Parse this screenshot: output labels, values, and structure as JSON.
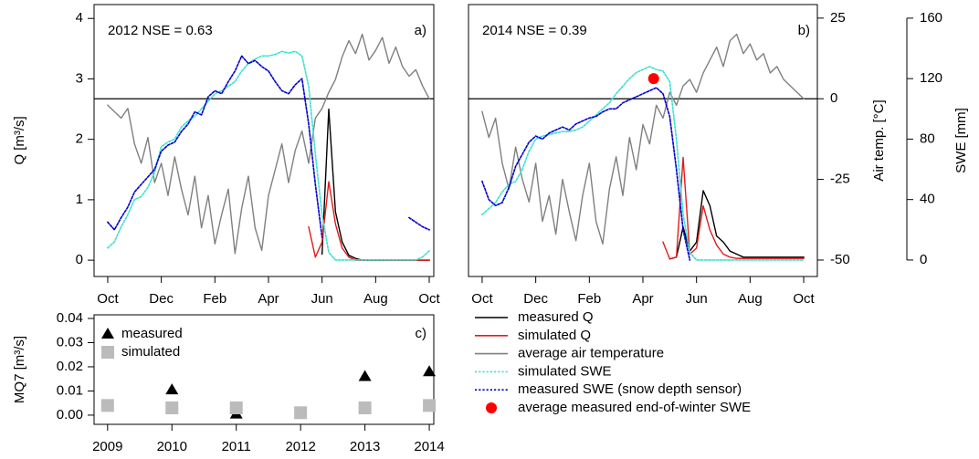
{
  "chart_data": [
    {
      "type": "line",
      "annotation": "2012 NSE = 0.63",
      "panel_label": "a)",
      "ylabel": "Q [m³/s]",
      "xlim": [
        -0.51,
        12.17
      ],
      "ylim": [
        -0.27,
        4.23
      ],
      "y2lim": [
        -55.1,
        29.2
      ],
      "y3lim": [
        -10.9,
        169
      ],
      "xticks": [
        {
          "value": 0,
          "label": "Oct"
        },
        {
          "value": 2,
          "label": "Dec"
        },
        {
          "value": 4,
          "label": "Feb"
        },
        {
          "value": 6,
          "label": "Apr"
        },
        {
          "value": 8,
          "label": "Jun"
        },
        {
          "value": 10,
          "label": "Aug"
        },
        {
          "value": 12,
          "label": "Oct"
        }
      ],
      "yticks": [
        0,
        1,
        2,
        3,
        4
      ],
      "reference_line": {
        "axis": "y2",
        "value": 0
      },
      "x": [
        0,
        0.25,
        0.5,
        0.75,
        1,
        1.25,
        1.5,
        1.75,
        2,
        2.25,
        2.5,
        2.75,
        3,
        3.25,
        3.5,
        3.75,
        4,
        4.25,
        4.5,
        4.75,
        5,
        5.25,
        5.5,
        5.75,
        6,
        6.25,
        6.5,
        6.75,
        7,
        7.25,
        7.5,
        7.75,
        8,
        8.25,
        8.5,
        8.75,
        9,
        9.25,
        9.5,
        9.75,
        10,
        10.25,
        10.5,
        10.75,
        11,
        11.25,
        11.5,
        11.75,
        12
      ],
      "series": [
        {
          "color": "#000000",
          "axis": "y",
          "style": "solid",
          "values": [
            0,
            null,
            null,
            null,
            null,
            null,
            null,
            null,
            null,
            null,
            null,
            null,
            null,
            null,
            null,
            null,
            null,
            null,
            null,
            null,
            null,
            null,
            null,
            null,
            null,
            null,
            null,
            null,
            null,
            null,
            null,
            null,
            0.1,
            2.5,
            0.8,
            0.3,
            0.08,
            0.03,
            0,
            0,
            0,
            0,
            0,
            0,
            0,
            0,
            0,
            0,
            0
          ]
        },
        {
          "color": "#e31a1c",
          "axis": "y",
          "style": "solid",
          "values": [
            null,
            null,
            null,
            null,
            null,
            null,
            null,
            null,
            null,
            null,
            null,
            null,
            null,
            null,
            null,
            null,
            null,
            null,
            null,
            null,
            null,
            null,
            null,
            null,
            null,
            null,
            null,
            null,
            null,
            null,
            0.55,
            0.05,
            0.3,
            1.3,
            0.6,
            0.2,
            0.05,
            0,
            0,
            0,
            0,
            0,
            0,
            0,
            0,
            0,
            0,
            0,
            0
          ]
        },
        {
          "color": "#808080",
          "axis": "y2",
          "style": "solid",
          "values": [
            -2,
            -4,
            -6,
            -3,
            -14,
            -20,
            -12,
            -26,
            -20,
            -30,
            -18,
            -28,
            -36,
            -24,
            -40,
            -30,
            -45,
            -36,
            -28,
            -48,
            -34,
            -24,
            -40,
            -47,
            -30,
            -22,
            -14,
            -26,
            -16,
            -10,
            -20,
            -6,
            -3,
            2,
            6,
            13,
            18,
            14,
            20,
            12,
            15,
            19,
            11,
            16,
            10,
            7,
            9,
            4,
            0
          ]
        },
        {
          "color": "#40e0d0",
          "axis": "y3",
          "style": "dotted",
          "values": [
            8,
            12,
            22,
            30,
            40,
            42,
            48,
            58,
            75,
            78,
            80,
            88,
            92,
            95,
            100,
            105,
            110,
            112,
            115,
            118,
            125,
            130,
            133,
            135,
            135,
            136,
            138,
            137,
            138,
            135,
            115,
            70,
            30,
            5,
            0,
            0,
            0,
            0,
            0,
            0,
            0,
            0,
            0,
            0,
            0,
            0,
            0,
            2,
            6
          ]
        },
        {
          "color": "#0000cd",
          "axis": "y3",
          "style": "dotted",
          "values": [
            25,
            20,
            28,
            35,
            45,
            50,
            55,
            60,
            72,
            76,
            78,
            85,
            90,
            98,
            96,
            108,
            112,
            110,
            118,
            125,
            135,
            130,
            132,
            128,
            125,
            118,
            112,
            110,
            116,
            120,
            90,
            50,
            15,
            null,
            null,
            null,
            null,
            null,
            null,
            null,
            null,
            null,
            null,
            null,
            null,
            28,
            25,
            22,
            20
          ]
        }
      ]
    },
    {
      "type": "line",
      "annotation": "2014 NSE = 0.39",
      "panel_label": "b)",
      "y2label": "Air temp. [°C]",
      "y3label": "SWE [mm]",
      "xlim": [
        -0.51,
        12.51
      ],
      "ylim": [
        -0.27,
        4.23
      ],
      "y2lim": [
        -55.1,
        29.2
      ],
      "y3lim": [
        -10.9,
        169
      ],
      "xticks": [
        {
          "value": 0,
          "label": "Oct"
        },
        {
          "value": 2,
          "label": "Dec"
        },
        {
          "value": 4,
          "label": "Feb"
        },
        {
          "value": 6,
          "label": "Apr"
        },
        {
          "value": 8,
          "label": "Jun"
        },
        {
          "value": 10,
          "label": "Aug"
        },
        {
          "value": 12,
          "label": "Oct"
        }
      ],
      "y2ticks": [
        -50,
        -25,
        0,
        25
      ],
      "y3ticks": [
        0,
        40,
        80,
        120,
        160
      ],
      "reference_line": {
        "axis": "y2",
        "value": 0
      },
      "legend": "below",
      "x": [
        0,
        0.25,
        0.5,
        0.75,
        1,
        1.25,
        1.5,
        1.75,
        2,
        2.25,
        2.5,
        2.75,
        3,
        3.25,
        3.5,
        3.75,
        4,
        4.25,
        4.5,
        4.75,
        5,
        5.25,
        5.5,
        5.75,
        6,
        6.25,
        6.5,
        6.75,
        7,
        7.25,
        7.5,
        7.75,
        8,
        8.25,
        8.5,
        8.75,
        9,
        9.25,
        9.5,
        9.75,
        10,
        10.25,
        10.5,
        10.75,
        11,
        11.25,
        11.5,
        11.75,
        12
      ],
      "series": [
        {
          "name": "measured Q",
          "color": "#000000",
          "axis": "y",
          "style": "solid",
          "values": [
            0,
            null,
            null,
            null,
            null,
            null,
            null,
            null,
            null,
            null,
            null,
            null,
            null,
            null,
            null,
            null,
            null,
            null,
            null,
            null,
            null,
            null,
            null,
            null,
            null,
            null,
            null,
            null,
            0.02,
            0.05,
            0.55,
            0.15,
            0.3,
            1.15,
            0.9,
            0.4,
            0.3,
            0.15,
            0.1,
            0.05,
            0.05,
            0.05,
            0.05,
            0.05,
            0.05,
            0.05,
            0.05,
            0.05,
            0.05
          ]
        },
        {
          "name": "simulated Q",
          "color": "#e31a1c",
          "axis": "y",
          "style": "solid",
          "values": [
            null,
            null,
            null,
            null,
            null,
            null,
            null,
            null,
            null,
            null,
            null,
            null,
            null,
            null,
            null,
            null,
            null,
            null,
            null,
            null,
            null,
            null,
            null,
            null,
            null,
            null,
            null,
            0.3,
            0.02,
            0.05,
            1.7,
            0.1,
            0.2,
            0.9,
            0.5,
            0.25,
            0.1,
            0.05,
            0.03,
            0.03,
            0.03,
            0.03,
            0.03,
            0.03,
            0.03,
            0.03,
            0.03,
            0.03,
            0.03
          ]
        },
        {
          "name": "average air temperature",
          "color": "#808080",
          "axis": "y2",
          "style": "solid",
          "values": [
            -4,
            -12,
            -6,
            -20,
            -28,
            -15,
            -25,
            -32,
            -20,
            -38,
            -30,
            -42,
            -25,
            -35,
            -44,
            -30,
            -20,
            -38,
            -45,
            -28,
            -18,
            -30,
            -12,
            -22,
            -8,
            -14,
            -2,
            -6,
            2,
            -2,
            4,
            6,
            2,
            8,
            12,
            16,
            10,
            18,
            20,
            14,
            17,
            12,
            14,
            8,
            10,
            6,
            4,
            2,
            0
          ]
        },
        {
          "name": "simulated SWE",
          "color": "#40e0d0",
          "axis": "y3",
          "style": "dotted",
          "values": [
            30,
            34,
            38,
            45,
            50,
            52,
            60,
            72,
            80,
            82,
            83,
            84,
            85,
            85,
            86,
            88,
            92,
            96,
            100,
            104,
            110,
            115,
            120,
            124,
            126,
            128,
            126,
            125,
            118,
            80,
            30,
            5,
            0,
            0,
            0,
            0,
            0,
            0,
            0,
            0,
            0,
            0,
            0,
            0,
            0,
            0,
            0,
            0,
            0
          ]
        },
        {
          "name": "measured SWE (snow depth sensor)",
          "color": "#0000cd",
          "axis": "y3",
          "style": "dotted",
          "values": [
            52,
            40,
            36,
            38,
            48,
            62,
            70,
            78,
            82,
            80,
            84,
            86,
            88,
            86,
            90,
            92,
            94,
            95,
            98,
            100,
            100,
            104,
            106,
            108,
            110,
            112,
            114,
            110,
            95,
            60,
            20,
            0,
            null,
            null,
            null,
            null,
            null,
            null,
            null,
            null,
            null,
            null,
            null,
            null,
            null,
            null,
            null,
            null,
            null
          ]
        },
        {
          "name": "average measured end-of-winter SWE",
          "color": "#ff0000",
          "axis": "y3",
          "marker": "circle",
          "x": [
            6.4
          ],
          "values": [
            120
          ]
        }
      ]
    },
    {
      "type": "scatter",
      "panel_label": "c)",
      "ylabel": "MQ7 [m³/s]",
      "xlim": [
        2008.79,
        2014.07
      ],
      "ylim": [
        -0.0038,
        0.0415
      ],
      "xticks": [
        2009,
        2010,
        2011,
        2012,
        2013,
        2014
      ],
      "yticks": [
        {
          "value": 0,
          "label": "0.00"
        },
        {
          "value": 0.01,
          "label": "0.01"
        },
        {
          "value": 0.02,
          "label": "0.02"
        },
        {
          "value": 0.03,
          "label": "0.03"
        },
        {
          "value": 0.04,
          "label": "0.04"
        }
      ],
      "legend": "top-left",
      "x": [
        2009,
        2010,
        2011,
        2012,
        2013,
        2014
      ],
      "series": [
        {
          "name": "measured",
          "color": "#000000",
          "marker": "triangle",
          "axis": "y",
          "values": [
            0.0035,
            0.0105,
            0.0005,
            0.0005,
            0.016,
            0.018
          ]
        },
        {
          "name": "simulated",
          "color": "#bbbbbb",
          "marker": "square",
          "axis": "y",
          "values": [
            0.004,
            0.003,
            0.003,
            0.001,
            0.003,
            0.004
          ]
        }
      ]
    }
  ]
}
